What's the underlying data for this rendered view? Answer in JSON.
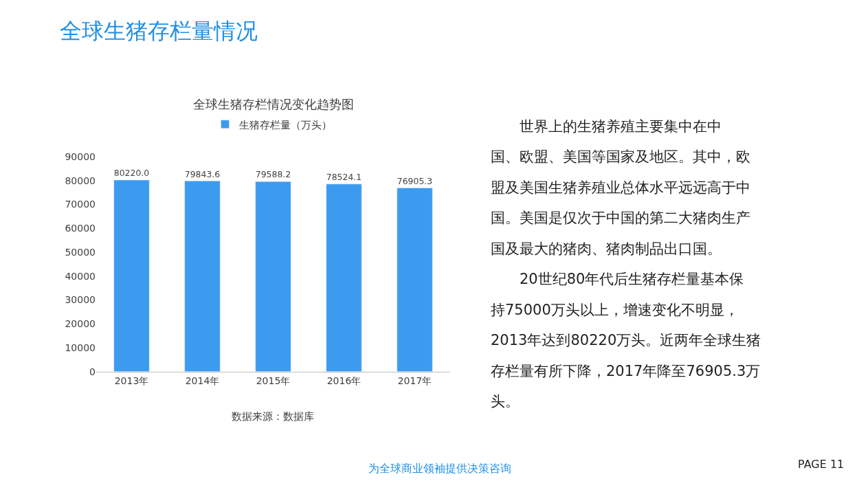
{
  "chart_data": {
    "type": "bar",
    "title": "全球生猪存栏情况变化趋势图",
    "categories": [
      "2013年",
      "2014年",
      "2015年",
      "2016年",
      "2017年"
    ],
    "series": [
      {
        "name": "生猪存栏量（万头）",
        "color": "#3d9bef",
        "values": [
          80220.0,
          79843.6,
          79588.2,
          78524.1,
          76905.3
        ],
        "value_labels": [
          "80220.0",
          "79843.6",
          "79588.2",
          "78524.1",
          "76905.3"
        ]
      }
    ],
    "ylim": [
      0,
      90000
    ],
    "yticks": [
      0,
      10000,
      20000,
      30000,
      40000,
      50000,
      60000,
      70000,
      80000,
      90000
    ],
    "grid": false,
    "legend": "top",
    "annotations": [
      "全球生猪存栏量情况",
      "数据来源：数据库",
      "　　世界上的生猪养殖主要集中在中",
      "国、欧盟、美国等国家及地区。其中，欧",
      "盟及美国生猪养殖业总体水平远远高于中",
      "国。美国是仅次于中国的第二大猪肉生产",
      "国及最大的猪肉、猪肉制品出口国。",
      "　　20世纪80年代后生猪存栏量基本保",
      "持75000万头以上，增速变化不明显，",
      "2013年达到80220万头。近两年全球生猪",
      "存栏量有所下降，2017年降至76905.3万",
      "头。",
      "为全球商业领袖提供决策咨询",
      "PAGE 11"
    ]
  }
}
